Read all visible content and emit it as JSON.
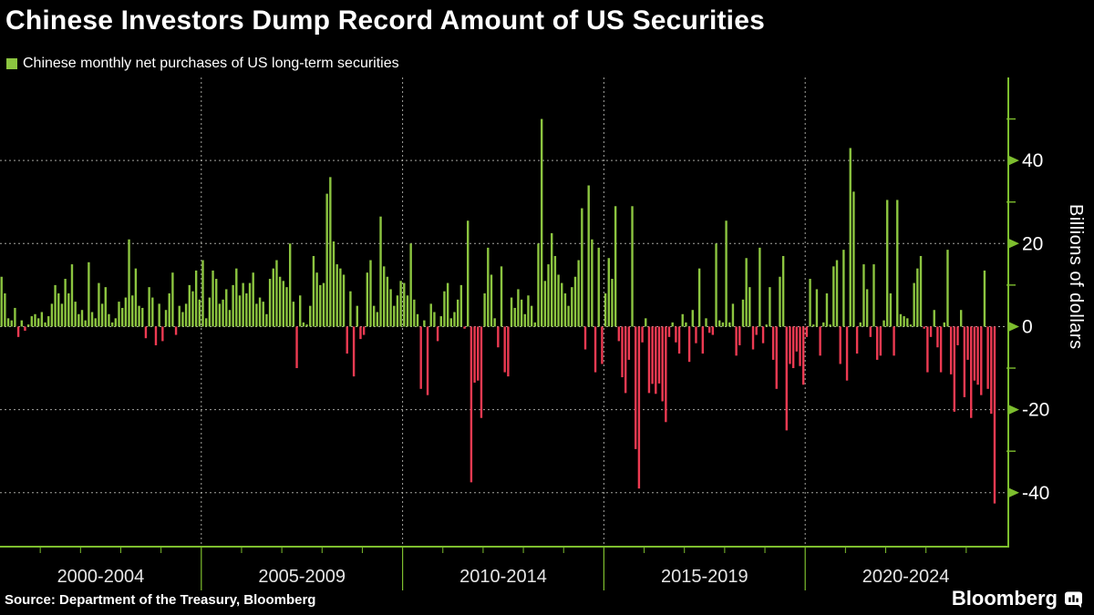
{
  "header": {
    "title": "Chinese Investors Dump Record Amount of US Securities",
    "legend_label": "Chinese monthly net purchases of US long-term securities"
  },
  "source_line": "Source: Department of the Treasury, Bloomberg",
  "branding": {
    "wordmark": "Bloomberg"
  },
  "colors": {
    "background": "#000000",
    "positive_bar": "#8CC540",
    "negative_bar": "#ED3A52",
    "axis_green": "#7DBE2E",
    "gridline": "#CFCFC8",
    "tick_label": "#FFFFFF",
    "x_label": "#E6E6E6"
  },
  "chart_data": {
    "type": "bar",
    "title": "Chinese Investors Dump Record Amount of US Securities",
    "series_name": "Chinese monthly net purchases of US long-term securities",
    "unit": "Billions of dollars",
    "ylabel": "Billions of dollars",
    "xlabel": "",
    "frequency": "monthly",
    "start": "2000-01",
    "x_section_labels": [
      "2000-2004",
      "2005-2009",
      "2010-2014",
      "2015-2019",
      "2020-2024"
    ],
    "yticks_major": [
      40,
      20,
      0,
      -20,
      -40
    ],
    "yticks_minor": [
      50,
      30,
      10,
      -10,
      -30
    ],
    "ylim": [
      -53,
      60
    ],
    "grid": "dashed",
    "legend_position": "top-left",
    "record_low_value": -42.6,
    "values": [
      12,
      8,
      2,
      1.5,
      4.5,
      -2.5,
      1.5,
      -1,
      0.5,
      2.5,
      3,
      2,
      3.5,
      1,
      2.5,
      5.5,
      10,
      8,
      5.5,
      11.5,
      8,
      15,
      6,
      3,
      4,
      1.5,
      15.5,
      3.5,
      2,
      10.5,
      5.5,
      9.5,
      3,
      1,
      2,
      6,
      4.5,
      7,
      21,
      7.5,
      14,
      5,
      4.5,
      -2.8,
      9.5,
      7,
      -4.5,
      5.5,
      -3.5,
      4,
      8,
      13,
      -2,
      5,
      3.5,
      5.5,
      10,
      8.5,
      13.5,
      6.5,
      16,
      2,
      7,
      13.5,
      11.5,
      5.5,
      6.5,
      9,
      4,
      10,
      14,
      7.5,
      10.5,
      8,
      10.5,
      13,
      5.5,
      7,
      6,
      3,
      11.5,
      14,
      16,
      12,
      11,
      9.5,
      20,
      6,
      -10,
      7.5,
      1,
      0.5,
      5,
      17,
      13,
      10,
      10.5,
      32,
      36,
      20.5,
      15,
      14,
      12.5,
      -6.5,
      8.5,
      -12,
      5,
      -3,
      -2,
      13,
      16,
      5,
      3.5,
      26.5,
      14.5,
      12,
      9,
      5,
      7.5,
      11,
      10.5,
      7.5,
      20,
      6.5,
      3,
      -15,
      1.5,
      -16.5,
      5.5,
      3.5,
      -3.5,
      2.5,
      8.5,
      10.5,
      2,
      3.5,
      6.5,
      10,
      -0.5,
      25.5,
      -37.5,
      -13.5,
      -13,
      -22,
      8,
      19,
      12.5,
      2,
      -5,
      14.5,
      -11,
      -12,
      7,
      4.5,
      9,
      6.5,
      3,
      7.5,
      5,
      1,
      20,
      50,
      11,
      15,
      22.5,
      17,
      12.5,
      10.5,
      8,
      5,
      9.5,
      12,
      16,
      28.5,
      -5.5,
      34,
      21,
      -11,
      19,
      -9,
      8,
      16.5,
      11.5,
      29,
      -3.5,
      -12.2,
      -16,
      -8,
      29,
      -29.5,
      -39,
      -3.8,
      2,
      -16,
      -13.8,
      -16.2,
      -13.7,
      -18,
      -23,
      -2.5,
      1,
      -3.8,
      -6.5,
      3,
      1,
      -8.5,
      4,
      -4,
      14,
      -6.5,
      2,
      -1.5,
      -2,
      20,
      1.5,
      1,
      25.5,
      1,
      5.5,
      -7,
      -4.5,
      6.5,
      16.5,
      9.5,
      -5.5,
      -2,
      19,
      -4,
      0.5,
      9.5,
      -8,
      -15,
      12,
      17,
      -25,
      -9,
      -10,
      -6,
      -9.5,
      -14,
      -2.5,
      11.5,
      0.5,
      9,
      -7,
      1,
      8,
      0.5,
      14.5,
      16,
      -9,
      18.5,
      -13,
      43,
      32.5,
      -6.5,
      1,
      15,
      9,
      -2.5,
      15,
      -8,
      -7,
      1.5,
      30.5,
      8,
      -7,
      30.5,
      3,
      2.5,
      2,
      0.5,
      10.5,
      14,
      17,
      -0.5,
      -11,
      -2.5,
      4,
      -5,
      -11,
      1,
      18.5,
      -11.5,
      -20.5,
      -4.5,
      4,
      -17,
      -8,
      -22,
      -13,
      -14,
      -16.5,
      13.5,
      -15,
      -21,
      -42.6,
      0,
      0,
      0
    ]
  }
}
